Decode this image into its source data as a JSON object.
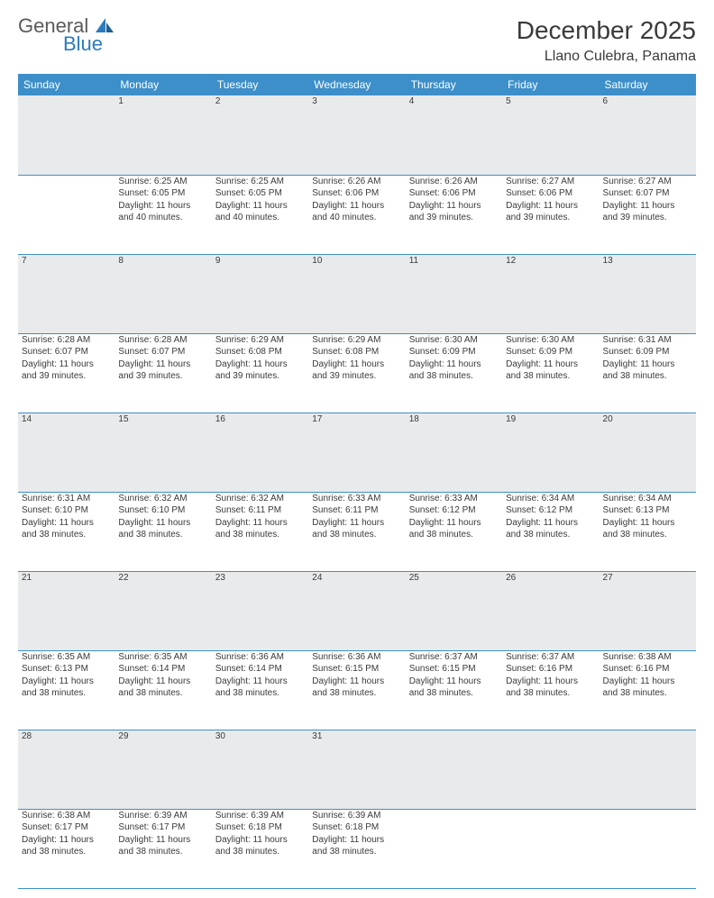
{
  "logo": {
    "word1": "General",
    "word2": "Blue"
  },
  "title": "December 2025",
  "location": "Llano Culebra, Panama",
  "colors": {
    "header_bg": "#3d8fc9",
    "header_text": "#ffffff",
    "daynum_bg": "#e9eaec",
    "text": "#3a3a3a",
    "border": "#3d8fc9",
    "logo_gray": "#5a5a5a",
    "logo_blue": "#2b7bbf"
  },
  "typography": {
    "title_fontsize": 28,
    "location_fontsize": 16,
    "header_fontsize": 12,
    "daynum_fontsize": 11.5,
    "cell_fontsize": 10
  },
  "day_headers": [
    "Sunday",
    "Monday",
    "Tuesday",
    "Wednesday",
    "Thursday",
    "Friday",
    "Saturday"
  ],
  "weeks": [
    {
      "nums": [
        "",
        "1",
        "2",
        "3",
        "4",
        "5",
        "6"
      ],
      "cells": [
        null,
        {
          "sunrise": "Sunrise: 6:25 AM",
          "sunset": "Sunset: 6:05 PM",
          "day1": "Daylight: 11 hours",
          "day2": "and 40 minutes."
        },
        {
          "sunrise": "Sunrise: 6:25 AM",
          "sunset": "Sunset: 6:05 PM",
          "day1": "Daylight: 11 hours",
          "day2": "and 40 minutes."
        },
        {
          "sunrise": "Sunrise: 6:26 AM",
          "sunset": "Sunset: 6:06 PM",
          "day1": "Daylight: 11 hours",
          "day2": "and 40 minutes."
        },
        {
          "sunrise": "Sunrise: 6:26 AM",
          "sunset": "Sunset: 6:06 PM",
          "day1": "Daylight: 11 hours",
          "day2": "and 39 minutes."
        },
        {
          "sunrise": "Sunrise: 6:27 AM",
          "sunset": "Sunset: 6:06 PM",
          "day1": "Daylight: 11 hours",
          "day2": "and 39 minutes."
        },
        {
          "sunrise": "Sunrise: 6:27 AM",
          "sunset": "Sunset: 6:07 PM",
          "day1": "Daylight: 11 hours",
          "day2": "and 39 minutes."
        }
      ]
    },
    {
      "nums": [
        "7",
        "8",
        "9",
        "10",
        "11",
        "12",
        "13"
      ],
      "cells": [
        {
          "sunrise": "Sunrise: 6:28 AM",
          "sunset": "Sunset: 6:07 PM",
          "day1": "Daylight: 11 hours",
          "day2": "and 39 minutes."
        },
        {
          "sunrise": "Sunrise: 6:28 AM",
          "sunset": "Sunset: 6:07 PM",
          "day1": "Daylight: 11 hours",
          "day2": "and 39 minutes."
        },
        {
          "sunrise": "Sunrise: 6:29 AM",
          "sunset": "Sunset: 6:08 PM",
          "day1": "Daylight: 11 hours",
          "day2": "and 39 minutes."
        },
        {
          "sunrise": "Sunrise: 6:29 AM",
          "sunset": "Sunset: 6:08 PM",
          "day1": "Daylight: 11 hours",
          "day2": "and 39 minutes."
        },
        {
          "sunrise": "Sunrise: 6:30 AM",
          "sunset": "Sunset: 6:09 PM",
          "day1": "Daylight: 11 hours",
          "day2": "and 38 minutes."
        },
        {
          "sunrise": "Sunrise: 6:30 AM",
          "sunset": "Sunset: 6:09 PM",
          "day1": "Daylight: 11 hours",
          "day2": "and 38 minutes."
        },
        {
          "sunrise": "Sunrise: 6:31 AM",
          "sunset": "Sunset: 6:09 PM",
          "day1": "Daylight: 11 hours",
          "day2": "and 38 minutes."
        }
      ]
    },
    {
      "nums": [
        "14",
        "15",
        "16",
        "17",
        "18",
        "19",
        "20"
      ],
      "cells": [
        {
          "sunrise": "Sunrise: 6:31 AM",
          "sunset": "Sunset: 6:10 PM",
          "day1": "Daylight: 11 hours",
          "day2": "and 38 minutes."
        },
        {
          "sunrise": "Sunrise: 6:32 AM",
          "sunset": "Sunset: 6:10 PM",
          "day1": "Daylight: 11 hours",
          "day2": "and 38 minutes."
        },
        {
          "sunrise": "Sunrise: 6:32 AM",
          "sunset": "Sunset: 6:11 PM",
          "day1": "Daylight: 11 hours",
          "day2": "and 38 minutes."
        },
        {
          "sunrise": "Sunrise: 6:33 AM",
          "sunset": "Sunset: 6:11 PM",
          "day1": "Daylight: 11 hours",
          "day2": "and 38 minutes."
        },
        {
          "sunrise": "Sunrise: 6:33 AM",
          "sunset": "Sunset: 6:12 PM",
          "day1": "Daylight: 11 hours",
          "day2": "and 38 minutes."
        },
        {
          "sunrise": "Sunrise: 6:34 AM",
          "sunset": "Sunset: 6:12 PM",
          "day1": "Daylight: 11 hours",
          "day2": "and 38 minutes."
        },
        {
          "sunrise": "Sunrise: 6:34 AM",
          "sunset": "Sunset: 6:13 PM",
          "day1": "Daylight: 11 hours",
          "day2": "and 38 minutes."
        }
      ]
    },
    {
      "nums": [
        "21",
        "22",
        "23",
        "24",
        "25",
        "26",
        "27"
      ],
      "cells": [
        {
          "sunrise": "Sunrise: 6:35 AM",
          "sunset": "Sunset: 6:13 PM",
          "day1": "Daylight: 11 hours",
          "day2": "and 38 minutes."
        },
        {
          "sunrise": "Sunrise: 6:35 AM",
          "sunset": "Sunset: 6:14 PM",
          "day1": "Daylight: 11 hours",
          "day2": "and 38 minutes."
        },
        {
          "sunrise": "Sunrise: 6:36 AM",
          "sunset": "Sunset: 6:14 PM",
          "day1": "Daylight: 11 hours",
          "day2": "and 38 minutes."
        },
        {
          "sunrise": "Sunrise: 6:36 AM",
          "sunset": "Sunset: 6:15 PM",
          "day1": "Daylight: 11 hours",
          "day2": "and 38 minutes."
        },
        {
          "sunrise": "Sunrise: 6:37 AM",
          "sunset": "Sunset: 6:15 PM",
          "day1": "Daylight: 11 hours",
          "day2": "and 38 minutes."
        },
        {
          "sunrise": "Sunrise: 6:37 AM",
          "sunset": "Sunset: 6:16 PM",
          "day1": "Daylight: 11 hours",
          "day2": "and 38 minutes."
        },
        {
          "sunrise": "Sunrise: 6:38 AM",
          "sunset": "Sunset: 6:16 PM",
          "day1": "Daylight: 11 hours",
          "day2": "and 38 minutes."
        }
      ]
    },
    {
      "nums": [
        "28",
        "29",
        "30",
        "31",
        "",
        "",
        ""
      ],
      "cells": [
        {
          "sunrise": "Sunrise: 6:38 AM",
          "sunset": "Sunset: 6:17 PM",
          "day1": "Daylight: 11 hours",
          "day2": "and 38 minutes."
        },
        {
          "sunrise": "Sunrise: 6:39 AM",
          "sunset": "Sunset: 6:17 PM",
          "day1": "Daylight: 11 hours",
          "day2": "and 38 minutes."
        },
        {
          "sunrise": "Sunrise: 6:39 AM",
          "sunset": "Sunset: 6:18 PM",
          "day1": "Daylight: 11 hours",
          "day2": "and 38 minutes."
        },
        {
          "sunrise": "Sunrise: 6:39 AM",
          "sunset": "Sunset: 6:18 PM",
          "day1": "Daylight: 11 hours",
          "day2": "and 38 minutes."
        },
        null,
        null,
        null
      ]
    }
  ]
}
